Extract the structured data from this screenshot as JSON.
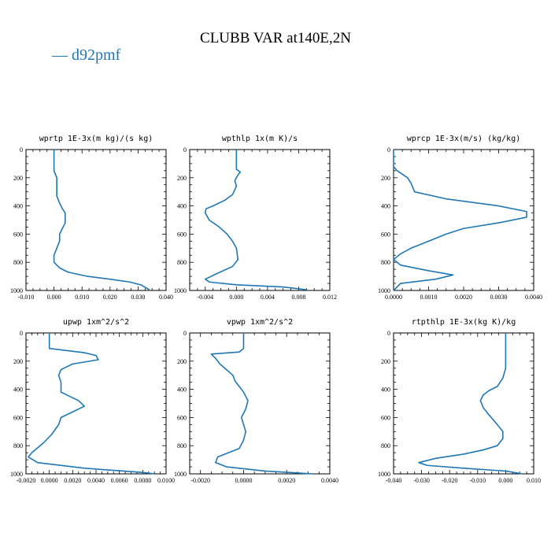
{
  "figure": {
    "title": "CLUBB VAR at140E,2N",
    "legend": {
      "marker": "—",
      "label": "d92pmf",
      "color": "#1f77b4"
    }
  },
  "chart_data": [
    {
      "type": "line",
      "title": "wprtp   1E-3x(m kg)/(s kg)",
      "xlim": [
        -0.01,
        0.04
      ],
      "ylim": [
        1000,
        0
      ],
      "xticks": [
        -0.01,
        0.0,
        0.01,
        0.02,
        0.03,
        0.04
      ],
      "xtick_labels": [
        "-0.010",
        "0.000",
        "0.010",
        "0.020",
        "0.030",
        "0.040"
      ],
      "yticks": [
        0,
        200,
        400,
        600,
        800,
        1000
      ],
      "ytick_labels": [
        "0",
        "200",
        "400",
        "600",
        "800",
        "1000"
      ],
      "series": [
        {
          "color": "#1f77b4",
          "x": [
            0.0,
            0.0,
            0.001,
            0.001,
            0.001,
            0.001,
            0.002,
            0.003,
            0.004,
            0.004,
            0.004,
            0.003,
            0.002,
            0.002,
            0.001,
            0.0,
            0.0,
            0.002,
            0.005,
            0.012,
            0.02,
            0.027,
            0.031,
            0.034
          ],
          "y": [
            0,
            150,
            200,
            250,
            300,
            330,
            380,
            420,
            450,
            480,
            520,
            560,
            600,
            650,
            700,
            750,
            800,
            840,
            870,
            900,
            920,
            940,
            960,
            995
          ]
        }
      ]
    },
    {
      "type": "line",
      "title": "wpthlp  1x(m K)/s",
      "xlim": [
        -0.006,
        0.012
      ],
      "ylim": [
        1000,
        0
      ],
      "xticks": [
        -0.004,
        0.0,
        0.004,
        0.008,
        0.012
      ],
      "xtick_labels": [
        "-0.004",
        "0.000",
        "0.004",
        "0.008",
        "0.012"
      ],
      "yticks": [
        0,
        200,
        400,
        600,
        800,
        1000
      ],
      "ytick_labels": [
        "0",
        "200",
        "400",
        "600",
        "800",
        "1000"
      ],
      "series": [
        {
          "color": "#1f77b4",
          "x": [
            0.0,
            0.0,
            0.0005,
            0.0002,
            -0.0002,
            0.0,
            -0.0005,
            -0.0015,
            -0.003,
            -0.0039,
            -0.004,
            -0.0035,
            -0.0022,
            -0.0012,
            -0.0005,
            0.0,
            0.0002,
            -0.0005,
            -0.0025,
            -0.004,
            -0.0035,
            0.0,
            0.006,
            0.009
          ],
          "y": [
            0,
            140,
            160,
            180,
            220,
            260,
            320,
            360,
            400,
            420,
            450,
            500,
            550,
            600,
            650,
            700,
            780,
            830,
            880,
            920,
            940,
            960,
            975,
            995
          ]
        }
      ]
    },
    {
      "type": "line",
      "title": "wprcp  1E-3x(m/s) (kg/kg)",
      "xlim": [
        0.0,
        0.004
      ],
      "ylim": [
        1000,
        0
      ],
      "xticks": [
        0.0,
        0.001,
        0.002,
        0.003,
        0.004
      ],
      "xtick_labels": [
        "0.0000",
        "0.0010",
        "0.0020",
        "0.0030",
        "0.0040"
      ],
      "yticks": [
        0,
        200,
        400,
        600,
        800,
        1000
      ],
      "ytick_labels": [
        "0",
        "200",
        "400",
        "600",
        "800",
        "1000"
      ],
      "series": [
        {
          "color": "#1f77b4",
          "x": [
            0.0,
            0.0,
            0.0001,
            0.0004,
            0.0005,
            0.0006,
            0.0015,
            0.003,
            0.0038,
            0.0038,
            0.003,
            0.002,
            0.0015,
            0.001,
            0.0005,
            0.0002,
            0.0,
            0.0002,
            0.001,
            0.0017,
            0.0012,
            0.0002,
            0.0
          ],
          "y": [
            0,
            120,
            150,
            200,
            240,
            300,
            350,
            400,
            440,
            480,
            520,
            560,
            600,
            650,
            700,
            740,
            780,
            820,
            860,
            890,
            920,
            950,
            1000
          ]
        }
      ]
    },
    {
      "type": "line",
      "title": "upwp  1xm^2/s^2",
      "xlim": [
        -0.002,
        0.01
      ],
      "ylim": [
        1000,
        0
      ],
      "xticks": [
        -0.002,
        0.0,
        0.002,
        0.004,
        0.006,
        0.008,
        0.01
      ],
      "xtick_labels": [
        "-0.0020",
        "0.0000",
        "0.0020",
        "0.0040",
        "0.0060",
        "0.0080",
        "0.0100"
      ],
      "yticks": [
        0,
        200,
        400,
        600,
        800,
        1000
      ],
      "ytick_labels": [
        "0",
        "200",
        "400",
        "600",
        "800",
        "1000"
      ],
      "series": [
        {
          "color": "#1f77b4",
          "x": [
            0.0,
            0.0,
            0.003,
            0.004,
            0.0042,
            0.002,
            0.001,
            0.0008,
            0.001,
            0.001,
            0.0025,
            0.003,
            0.002,
            0.001,
            0.0008,
            0.0002,
            -0.0005,
            -0.0015,
            -0.0018,
            -0.001,
            0.003,
            0.008,
            0.009
          ],
          "y": [
            0,
            110,
            140,
            160,
            190,
            220,
            260,
            300,
            350,
            420,
            480,
            520,
            560,
            600,
            650,
            720,
            780,
            850,
            880,
            920,
            960,
            990,
            1000
          ]
        }
      ]
    },
    {
      "type": "line",
      "title": "vpwp  1xm^2/s^2",
      "xlim": [
        -0.0025,
        0.004
      ],
      "ylim": [
        1000,
        0
      ],
      "xticks": [
        -0.002,
        0.0,
        0.002,
        0.004
      ],
      "xtick_labels": [
        "-0.0020",
        "0.0000",
        "0.0020",
        "0.0040"
      ],
      "yticks": [
        0,
        200,
        400,
        600,
        800,
        1000
      ],
      "ytick_labels": [
        "0",
        "200",
        "400",
        "600",
        "800",
        "1000"
      ],
      "series": [
        {
          "color": "#1f77b4",
          "x": [
            0.0,
            0.0,
            -0.0002,
            -0.0015,
            -0.0013,
            -0.0011,
            -0.0008,
            -0.0005,
            -0.0004,
            -0.0002,
            0.0,
            0.0002,
            0.0001,
            -0.0001,
            0.0,
            0.0001,
            0.0,
            -0.0002,
            -0.0012,
            -0.0013,
            -0.0008,
            0.001,
            0.0032
          ],
          "y": [
            0,
            110,
            135,
            150,
            180,
            220,
            260,
            300,
            340,
            380,
            420,
            480,
            540,
            600,
            650,
            700,
            760,
            820,
            880,
            920,
            950,
            980,
            1000
          ]
        }
      ]
    },
    {
      "type": "line",
      "title": "rtpthlp  1E-3x(kg K)/kg",
      "xlim": [
        -0.04,
        0.01
      ],
      "ylim": [
        1000,
        0
      ],
      "xticks": [
        -0.04,
        -0.03,
        -0.02,
        -0.01,
        0.0,
        0.01
      ],
      "xtick_labels": [
        "-0.040",
        "-0.030",
        "-0.020",
        "-0.010",
        "0.000",
        "0.010"
      ],
      "yticks": [
        0,
        200,
        400,
        600,
        800,
        1000
      ],
      "ytick_labels": [
        "0",
        "200",
        "400",
        "600",
        "800",
        "1000"
      ],
      "series": [
        {
          "color": "#1f77b4",
          "x": [
            0.0,
            0.0,
            -0.001,
            -0.003,
            -0.006,
            -0.008,
            -0.009,
            -0.008,
            -0.006,
            -0.003,
            -0.001,
            -0.001,
            -0.003,
            -0.008,
            -0.015,
            -0.025,
            -0.031,
            -0.028,
            -0.015,
            0.0,
            0.006
          ],
          "y": [
            0,
            250,
            320,
            380,
            410,
            440,
            480,
            530,
            580,
            650,
            700,
            750,
            800,
            830,
            860,
            890,
            920,
            940,
            960,
            980,
            1000
          ]
        }
      ]
    }
  ]
}
